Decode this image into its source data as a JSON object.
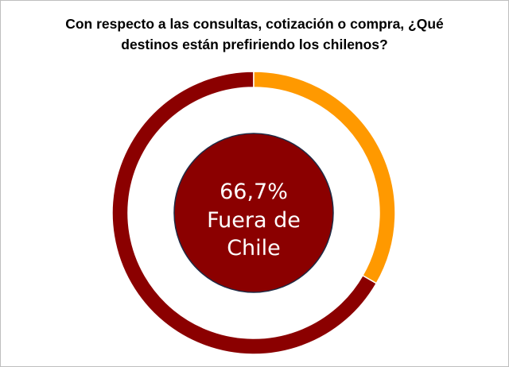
{
  "chart_data": {
    "type": "pie",
    "title_lines": [
      "Con respecto a las consultas, cotización o compra, ¿Qué",
      "destinos están prefiriendo los chilenos?"
    ],
    "slices": [
      {
        "value": 66.7,
        "color": "#8b0000"
      },
      {
        "value": 33.3,
        "color": "#ff9900"
      }
    ],
    "center_label": {
      "lines": [
        "66,7%",
        "Fuera de",
        "Chile"
      ],
      "color": "#8b0000"
    }
  }
}
